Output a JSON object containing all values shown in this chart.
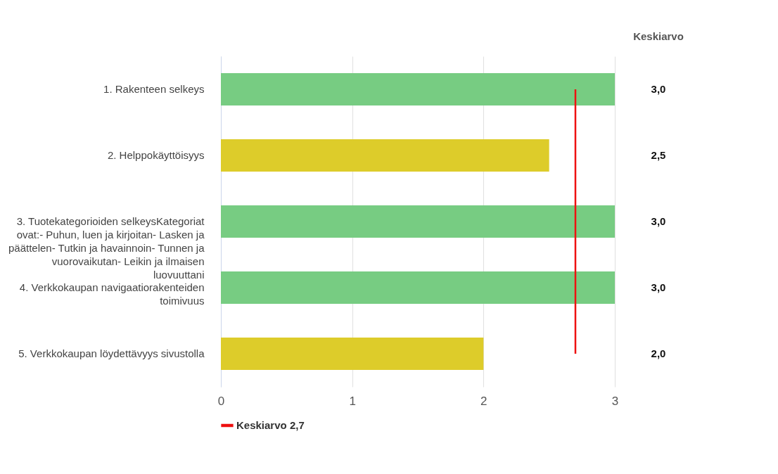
{
  "chart_data": {
    "type": "bar",
    "orientation": "horizontal",
    "categories": [
      "1. Rakenteen selkeys",
      "2. Helppokäyttöisyys",
      "3. Tuotekategorioiden selkeysKategoriat ovat:- Puhun, luen ja kirjoitan- Lasken ja päättelen- Tutkin ja havainnoin- Tunnen ja vuorovaikutan- Leikin ja ilmaisen luovuuttani",
      "4. Verkkokaupan navigaatiorakenteiden toimivuus",
      "5. Verkkokaupan löydettävyys sivustolla"
    ],
    "values": [
      3,
      2.5,
      3,
      3,
      2
    ],
    "colors": [
      "#77cc82",
      "#ddcc2a",
      "#77cc82",
      "#77cc82",
      "#ddcc2a"
    ],
    "value_labels": [
      "3,0",
      "2,5",
      "3,0",
      "3,0",
      "2,0"
    ],
    "annotations": [
      "Keskiarvo"
    ],
    "xlim": [
      0,
      3
    ],
    "xticks": [
      0,
      1,
      2,
      3
    ],
    "grid": "x",
    "ref_lines": [
      {
        "axis": "x",
        "value": 2.7,
        "label": "Keskiarvo 2,7",
        "color": "#ee1111"
      }
    ],
    "legend": "bottom"
  }
}
